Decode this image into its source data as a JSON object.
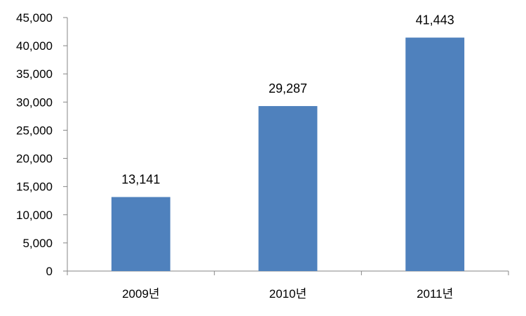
{
  "chart_data": {
    "type": "bar",
    "title": "",
    "xlabel": "",
    "ylabel": "",
    "categories": [
      "2009년",
      "2010년",
      "2011년"
    ],
    "values": [
      13141,
      29287,
      41443
    ],
    "data_labels": [
      "13,141",
      "29,287",
      "41,443"
    ],
    "ylim": [
      0,
      45000
    ],
    "yticks": [
      0,
      5000,
      10000,
      15000,
      20000,
      25000,
      30000,
      35000,
      40000,
      45000
    ],
    "ytick_labels": [
      "0",
      "5,000",
      "10,000",
      "15,000",
      "20,000",
      "25,000",
      "30,000",
      "35,000",
      "40,000",
      "45,000"
    ],
    "grid": false,
    "legend": "none",
    "bar_color": "#4F81BD"
  }
}
